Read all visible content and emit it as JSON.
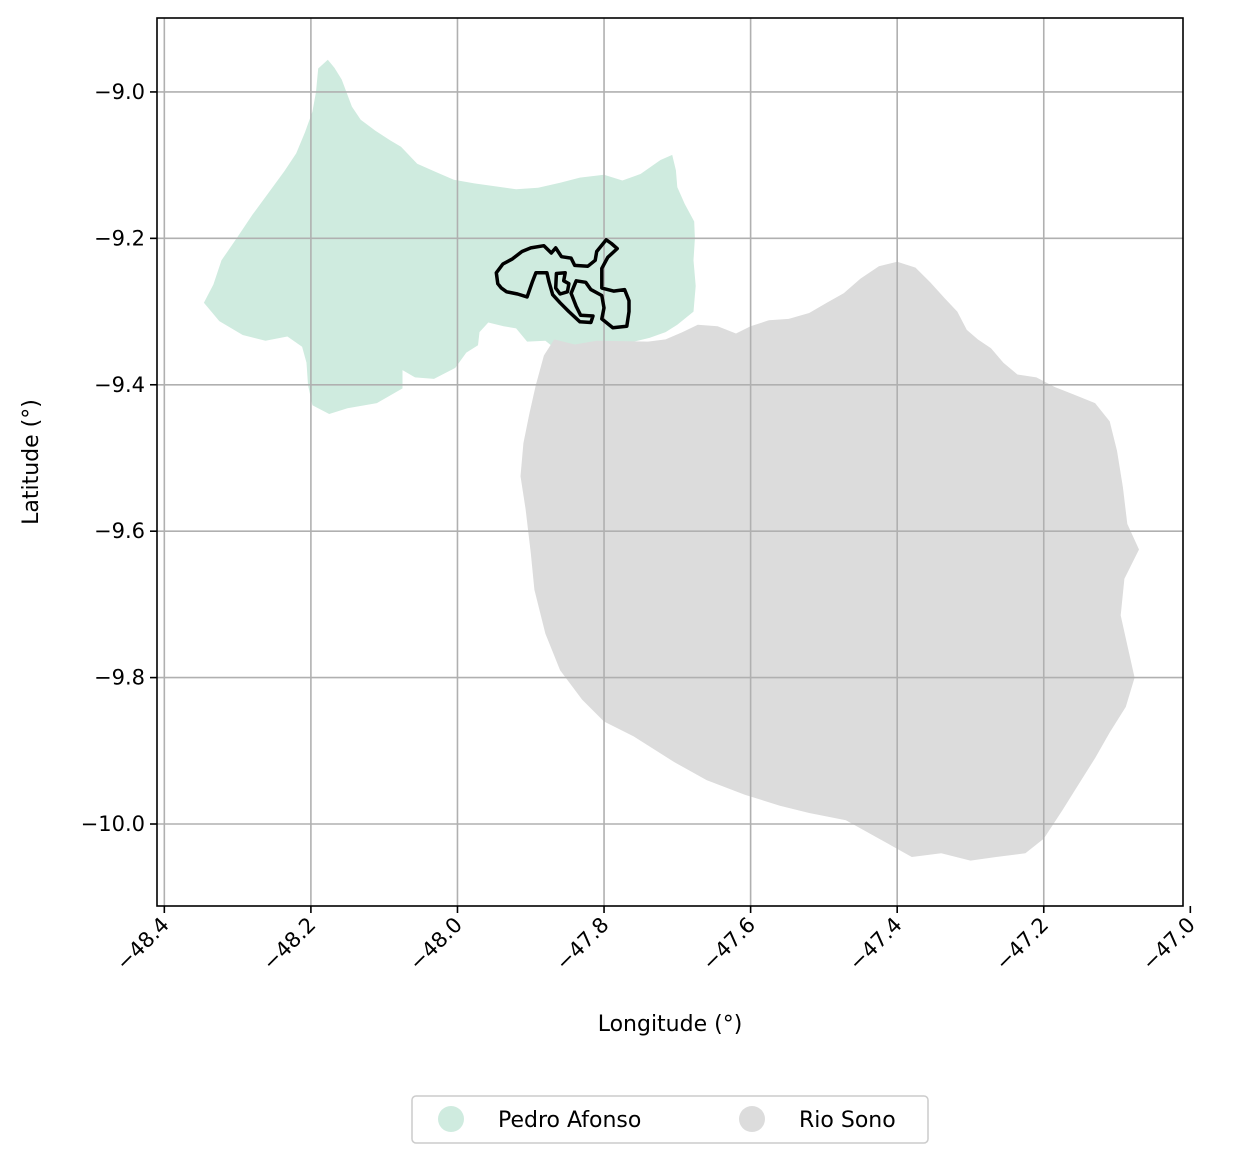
{
  "chart_data": {
    "type": "map",
    "xlabel": "Longitude (°)",
    "ylabel": "Latitude (°)",
    "xlim": [
      -48.41,
      -47.01
    ],
    "ylim": [
      -10.112,
      -8.899
    ],
    "xticks": [
      -48.4,
      -48.2,
      -48.0,
      -47.8,
      -47.6,
      -47.4,
      -47.2,
      -47.0
    ],
    "xtick_labels": [
      "−48.4",
      "−48.2",
      "−48.0",
      "−47.8",
      "−47.6",
      "−47.4",
      "−47.2",
      "−47.0"
    ],
    "yticks": [
      -9.0,
      -9.2,
      -9.4,
      -9.6,
      -9.8,
      -10.0
    ],
    "ytick_labels": [
      "−9.0",
      "−9.2",
      "−9.4",
      "−9.6",
      "−9.8",
      "−10.0"
    ],
    "grid": true,
    "legend_position": "bottom-center",
    "regions": [
      {
        "name": "Pedro Afonso",
        "color": "#cfebdf",
        "polygon": [
          [
            -48.177,
            -8.956
          ],
          [
            -48.168,
            -8.967
          ],
          [
            -48.158,
            -8.983
          ],
          [
            -48.144,
            -9.02
          ],
          [
            -48.132,
            -9.038
          ],
          [
            -48.112,
            -9.053
          ],
          [
            -48.092,
            -9.066
          ],
          [
            -48.077,
            -9.075
          ],
          [
            -48.055,
            -9.098
          ],
          [
            -48.028,
            -9.11
          ],
          [
            -48.005,
            -9.12
          ],
          [
            -47.977,
            -9.125
          ],
          [
            -47.955,
            -9.128
          ],
          [
            -47.92,
            -9.133
          ],
          [
            -47.89,
            -9.131
          ],
          [
            -47.86,
            -9.124
          ],
          [
            -47.833,
            -9.117
          ],
          [
            -47.8,
            -9.113
          ],
          [
            -47.775,
            -9.121
          ],
          [
            -47.75,
            -9.112
          ],
          [
            -47.723,
            -9.093
          ],
          [
            -47.707,
            -9.086
          ],
          [
            -47.702,
            -9.107
          ],
          [
            -47.7,
            -9.13
          ],
          [
            -47.69,
            -9.153
          ],
          [
            -47.677,
            -9.177
          ],
          [
            -47.676,
            -9.2
          ],
          [
            -47.678,
            -9.23
          ],
          [
            -47.675,
            -9.265
          ],
          [
            -47.678,
            -9.3
          ],
          [
            -47.7,
            -9.318
          ],
          [
            -47.716,
            -9.328
          ],
          [
            -47.738,
            -9.336
          ],
          [
            -47.763,
            -9.342
          ],
          [
            -47.79,
            -9.343
          ],
          [
            -47.813,
            -9.343
          ],
          [
            -47.84,
            -9.358
          ],
          [
            -47.865,
            -9.352
          ],
          [
            -47.88,
            -9.34
          ],
          [
            -47.905,
            -9.341
          ],
          [
            -47.92,
            -9.323
          ],
          [
            -47.937,
            -9.32
          ],
          [
            -47.958,
            -9.315
          ],
          [
            -47.97,
            -9.328
          ],
          [
            -47.972,
            -9.346
          ],
          [
            -47.988,
            -9.356
          ],
          [
            -48.003,
            -9.377
          ],
          [
            -48.032,
            -9.392
          ],
          [
            -48.058,
            -9.39
          ],
          [
            -48.075,
            -9.38
          ],
          [
            -48.075,
            -9.405
          ],
          [
            -48.11,
            -9.425
          ],
          [
            -48.15,
            -9.432
          ],
          [
            -48.175,
            -9.44
          ],
          [
            -48.198,
            -9.428
          ],
          [
            -48.204,
            -9.4
          ],
          [
            -48.206,
            -9.37
          ],
          [
            -48.212,
            -9.348
          ],
          [
            -48.232,
            -9.334
          ],
          [
            -48.262,
            -9.34
          ],
          [
            -48.293,
            -9.332
          ],
          [
            -48.325,
            -9.313
          ],
          [
            -48.346,
            -9.288
          ],
          [
            -48.333,
            -9.263
          ],
          [
            -48.322,
            -9.23
          ],
          [
            -48.3,
            -9.198
          ],
          [
            -48.28,
            -9.168
          ],
          [
            -48.258,
            -9.138
          ],
          [
            -48.236,
            -9.108
          ],
          [
            -48.22,
            -9.084
          ],
          [
            -48.208,
            -9.055
          ],
          [
            -48.198,
            -9.027
          ],
          [
            -48.193,
            -9.0
          ],
          [
            -48.19,
            -8.968
          ]
        ]
      },
      {
        "name": "Rio Sono",
        "color": "#dcdcdc",
        "polygon": [
          [
            -47.74,
            -9.341
          ],
          [
            -47.716,
            -9.338
          ],
          [
            -47.693,
            -9.328
          ],
          [
            -47.672,
            -9.318
          ],
          [
            -47.645,
            -9.32
          ],
          [
            -47.62,
            -9.33
          ],
          [
            -47.6,
            -9.32
          ],
          [
            -47.575,
            -9.312
          ],
          [
            -47.548,
            -9.31
          ],
          [
            -47.52,
            -9.302
          ],
          [
            -47.496,
            -9.288
          ],
          [
            -47.473,
            -9.275
          ],
          [
            -47.45,
            -9.255
          ],
          [
            -47.425,
            -9.238
          ],
          [
            -47.4,
            -9.232
          ],
          [
            -47.375,
            -9.24
          ],
          [
            -47.355,
            -9.26
          ],
          [
            -47.335,
            -9.282
          ],
          [
            -47.318,
            -9.3
          ],
          [
            -47.305,
            -9.325
          ],
          [
            -47.29,
            -9.338
          ],
          [
            -47.272,
            -9.35
          ],
          [
            -47.255,
            -9.37
          ],
          [
            -47.236,
            -9.386
          ],
          [
            -47.21,
            -9.39
          ],
          [
            -47.185,
            -9.403
          ],
          [
            -47.16,
            -9.413
          ],
          [
            -47.13,
            -9.425
          ],
          [
            -47.11,
            -9.45
          ],
          [
            -47.1,
            -9.49
          ],
          [
            -47.092,
            -9.54
          ],
          [
            -47.086,
            -9.59
          ],
          [
            -47.07,
            -9.625
          ],
          [
            -47.09,
            -9.665
          ],
          [
            -47.095,
            -9.715
          ],
          [
            -47.085,
            -9.76
          ],
          [
            -47.076,
            -9.8
          ],
          [
            -47.088,
            -9.84
          ],
          [
            -47.11,
            -9.875
          ],
          [
            -47.13,
            -9.91
          ],
          [
            -47.155,
            -9.95
          ],
          [
            -47.175,
            -9.982
          ],
          [
            -47.2,
            -10.02
          ],
          [
            -47.225,
            -10.04
          ],
          [
            -47.265,
            -10.045
          ],
          [
            -47.3,
            -10.05
          ],
          [
            -47.34,
            -10.04
          ],
          [
            -47.38,
            -10.045
          ],
          [
            -47.425,
            -10.02
          ],
          [
            -47.47,
            -9.995
          ],
          [
            -47.52,
            -9.985
          ],
          [
            -47.56,
            -9.975
          ],
          [
            -47.608,
            -9.96
          ],
          [
            -47.66,
            -9.94
          ],
          [
            -47.705,
            -9.915
          ],
          [
            -47.76,
            -9.88
          ],
          [
            -47.8,
            -9.86
          ],
          [
            -47.83,
            -9.83
          ],
          [
            -47.86,
            -9.79
          ],
          [
            -47.88,
            -9.74
          ],
          [
            -47.895,
            -9.68
          ],
          [
            -47.9,
            -9.63
          ],
          [
            -47.907,
            -9.57
          ],
          [
            -47.914,
            -9.525
          ],
          [
            -47.91,
            -9.48
          ],
          [
            -47.902,
            -9.44
          ],
          [
            -47.893,
            -9.4
          ],
          [
            -47.882,
            -9.36
          ],
          [
            -47.868,
            -9.338
          ],
          [
            -47.84,
            -9.345
          ],
          [
            -47.81,
            -9.34
          ]
        ]
      }
    ],
    "outline": {
      "color": "#000000",
      "rings": [
        [
          [
            -47.947,
            -9.247
          ],
          [
            -47.938,
            -9.235
          ],
          [
            -47.925,
            -9.228
          ],
          [
            -47.912,
            -9.218
          ],
          [
            -47.9,
            -9.213
          ],
          [
            -47.882,
            -9.21
          ],
          [
            -47.872,
            -9.22
          ],
          [
            -47.866,
            -9.213
          ],
          [
            -47.858,
            -9.225
          ],
          [
            -47.845,
            -9.227
          ],
          [
            -47.84,
            -9.237
          ],
          [
            -47.822,
            -9.238
          ],
          [
            -47.812,
            -9.23
          ],
          [
            -47.81,
            -9.218
          ],
          [
            -47.797,
            -9.202
          ],
          [
            -47.79,
            -9.207
          ],
          [
            -47.782,
            -9.214
          ],
          [
            -47.795,
            -9.226
          ],
          [
            -47.803,
            -9.241
          ],
          [
            -47.803,
            -9.268
          ],
          [
            -47.787,
            -9.272
          ],
          [
            -47.772,
            -9.27
          ],
          [
            -47.766,
            -9.285
          ],
          [
            -47.766,
            -9.3
          ],
          [
            -47.769,
            -9.32
          ],
          [
            -47.788,
            -9.322
          ],
          [
            -47.803,
            -9.31
          ],
          [
            -47.8,
            -9.295
          ],
          [
            -47.803,
            -9.278
          ],
          [
            -47.818,
            -9.27
          ],
          [
            -47.825,
            -9.26
          ],
          [
            -47.838,
            -9.258
          ],
          [
            -47.845,
            -9.275
          ],
          [
            -47.838,
            -9.293
          ],
          [
            -47.832,
            -9.305
          ],
          [
            -47.815,
            -9.306
          ],
          [
            -47.818,
            -9.315
          ],
          [
            -47.833,
            -9.314
          ],
          [
            -47.848,
            -9.3
          ],
          [
            -47.86,
            -9.288
          ],
          [
            -47.87,
            -9.277
          ],
          [
            -47.875,
            -9.26
          ],
          [
            -47.878,
            -9.247
          ],
          [
            -47.893,
            -9.247
          ],
          [
            -47.898,
            -9.26
          ],
          [
            -47.905,
            -9.28
          ],
          [
            -47.918,
            -9.276
          ],
          [
            -47.933,
            -9.273
          ],
          [
            -47.94,
            -9.268
          ],
          [
            -47.945,
            -9.262
          ],
          [
            -47.947,
            -9.247
          ]
        ],
        [
          [
            -47.865,
            -9.248
          ],
          [
            -47.853,
            -9.247
          ],
          [
            -47.855,
            -9.258
          ],
          [
            -47.848,
            -9.262
          ],
          [
            -47.85,
            -9.273
          ],
          [
            -47.86,
            -9.276
          ],
          [
            -47.866,
            -9.268
          ],
          [
            -47.865,
            -9.248
          ]
        ]
      ]
    }
  },
  "legend": {
    "items": [
      {
        "label": "Pedro Afonso",
        "color": "#cfebdf"
      },
      {
        "label": "Rio Sono",
        "color": "#dcdcdc"
      }
    ]
  }
}
